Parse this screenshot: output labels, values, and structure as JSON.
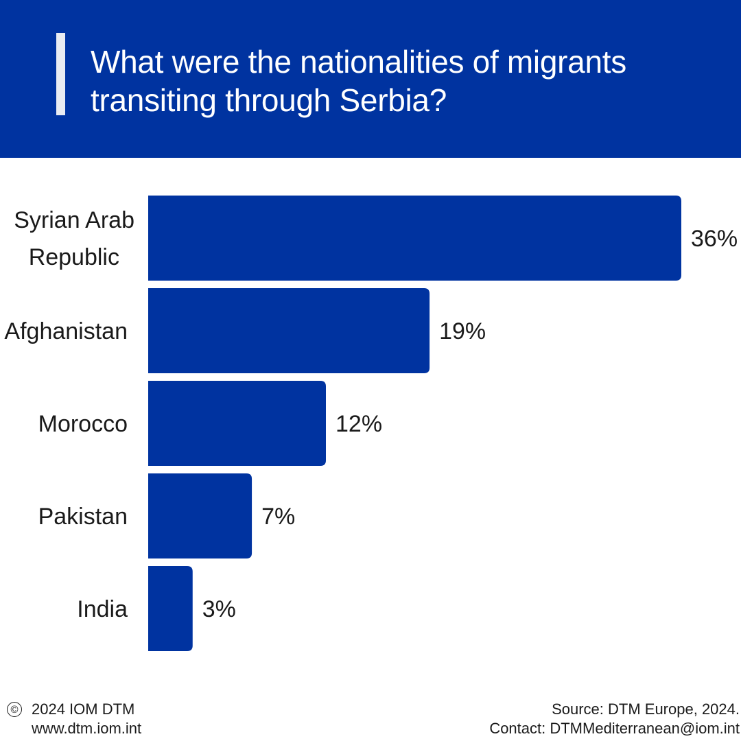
{
  "header": {
    "title_line1": "What were the nationalities of migrants",
    "title_line2": "transiting through Serbia?"
  },
  "colors": {
    "brand_blue": "#0033a0",
    "bar": "#0033a0",
    "accent_bar": "#e9ecf2"
  },
  "chart_data": {
    "type": "bar",
    "orientation": "horizontal",
    "title": "What were the nationalities of migrants transiting through Serbia?",
    "categories": [
      [
        "Syrian Arab",
        "Republic"
      ],
      [
        "Afghanistan"
      ],
      [
        "Morocco"
      ],
      [
        "Pakistan"
      ],
      [
        "India"
      ]
    ],
    "values": [
      36,
      19,
      12,
      7,
      3
    ],
    "value_labels": [
      "36%",
      "19%",
      "12%",
      "7%",
      "3%"
    ],
    "unit": "%",
    "xlim": [
      0,
      36
    ],
    "grid": false,
    "legend": "none"
  },
  "footer": {
    "copyright_icon": "copyright-icon",
    "copyright_glyph": "©",
    "copyright": "2024 IOM DTM",
    "website": "www.dtm.iom.int",
    "source": "Source: DTM Europe, 2024.",
    "contact": "Contact: DTMMediterranean@iom.int"
  }
}
